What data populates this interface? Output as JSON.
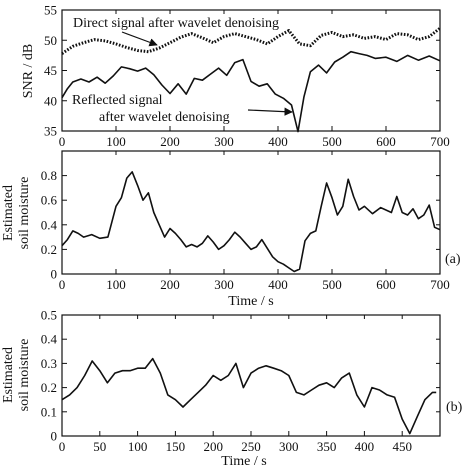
{
  "chart_data": [
    {
      "type": "line",
      "xlabel": "",
      "ylabel": "SNR / dB",
      "xlim": [
        0,
        700
      ],
      "ylim": [
        35,
        55
      ],
      "xticks": [
        0,
        100,
        200,
        300,
        400,
        500,
        600,
        700
      ],
      "yticks": [
        35,
        40,
        45,
        50,
        55
      ],
      "grid": false,
      "annotations": [
        {
          "text": "Direct signal after wavelet denoising",
          "target_series": 0
        },
        {
          "text": "Reflected signal after wavelet denoising",
          "lines": [
            "Reflected signal",
            "after wavelet denoising"
          ],
          "target_series": 1
        }
      ],
      "series": [
        {
          "style": "dotted",
          "x": [
            0,
            20,
            40,
            60,
            80,
            100,
            120,
            140,
            160,
            180,
            200,
            220,
            240,
            260,
            280,
            300,
            320,
            340,
            360,
            380,
            400,
            420,
            440,
            460,
            480,
            500,
            520,
            540,
            560,
            580,
            600,
            620,
            640,
            660,
            680,
            700
          ],
          "y": [
            47.8,
            49.0,
            49.6,
            50.1,
            49.9,
            49.4,
            48.8,
            48.3,
            48.1,
            48.7,
            49.6,
            50.5,
            51.1,
            50.4,
            49.6,
            50.6,
            51.1,
            50.6,
            50.1,
            49.4,
            50.6,
            51.6,
            49.4,
            49.1,
            50.8,
            51.3,
            50.6,
            50.9,
            50.3,
            50.6,
            50.1,
            51.1,
            50.9,
            50.1,
            50.6,
            52.0
          ]
        },
        {
          "style": "solid",
          "x": [
            0,
            10,
            20,
            35,
            50,
            65,
            80,
            95,
            110,
            125,
            140,
            155,
            170,
            185,
            200,
            215,
            230,
            245,
            260,
            275,
            290,
            305,
            320,
            335,
            350,
            365,
            380,
            395,
            410,
            425,
            437,
            448,
            460,
            475,
            490,
            505,
            520,
            535,
            550,
            565,
            580,
            600,
            620,
            640,
            660,
            680,
            700
          ],
          "y": [
            40.5,
            42.0,
            43.1,
            43.6,
            43.1,
            43.9,
            42.9,
            44.1,
            45.6,
            45.3,
            44.9,
            45.4,
            44.3,
            42.6,
            41.2,
            42.8,
            41.1,
            43.7,
            43.4,
            44.4,
            45.4,
            44.2,
            46.3,
            46.8,
            43.2,
            42.4,
            42.8,
            41.1,
            40.4,
            39.3,
            34.9,
            40.6,
            44.8,
            45.9,
            44.6,
            46.4,
            47.2,
            48.1,
            47.8,
            47.5,
            47.0,
            47.2,
            46.5,
            47.5,
            46.7,
            47.4,
            46.6
          ]
        }
      ]
    },
    {
      "type": "line",
      "panel_label": "(a)",
      "xlabel": "Time / s",
      "ylabel": "Estimated soil moisture",
      "ylabel_lines": [
        "Estimated",
        "soil moisture"
      ],
      "xlim": [
        0,
        700
      ],
      "ylim": [
        0,
        1.0
      ],
      "xticks": [
        0,
        100,
        200,
        300,
        400,
        500,
        600,
        700
      ],
      "yticks": [
        0,
        0.2,
        0.4,
        0.6,
        0.8
      ],
      "grid": false,
      "series": [
        {
          "style": "solid",
          "x": [
            0,
            10,
            20,
            30,
            40,
            55,
            70,
            85,
            100,
            110,
            120,
            130,
            140,
            150,
            160,
            170,
            180,
            190,
            200,
            210,
            220,
            230,
            240,
            250,
            260,
            270,
            280,
            290,
            300,
            310,
            320,
            330,
            340,
            350,
            360,
            370,
            380,
            390,
            400,
            410,
            420,
            430,
            440,
            450,
            460,
            470,
            480,
            490,
            500,
            510,
            520,
            530,
            540,
            550,
            560,
            575,
            590,
            610,
            620,
            630,
            640,
            650,
            660,
            670,
            680,
            690,
            700
          ],
          "y": [
            0.23,
            0.28,
            0.35,
            0.33,
            0.3,
            0.32,
            0.29,
            0.3,
            0.55,
            0.62,
            0.78,
            0.83,
            0.72,
            0.6,
            0.66,
            0.5,
            0.4,
            0.3,
            0.37,
            0.33,
            0.28,
            0.22,
            0.24,
            0.22,
            0.25,
            0.31,
            0.26,
            0.2,
            0.23,
            0.28,
            0.34,
            0.3,
            0.25,
            0.2,
            0.22,
            0.28,
            0.21,
            0.14,
            0.1,
            0.08,
            0.05,
            0.02,
            0.04,
            0.27,
            0.33,
            0.35,
            0.55,
            0.74,
            0.62,
            0.48,
            0.55,
            0.77,
            0.63,
            0.52,
            0.55,
            0.49,
            0.54,
            0.5,
            0.63,
            0.5,
            0.48,
            0.53,
            0.45,
            0.48,
            0.56,
            0.38,
            0.36
          ]
        }
      ]
    },
    {
      "type": "line",
      "panel_label": "(b)",
      "xlabel": "Time / s",
      "ylabel": "Estimated soil moisture",
      "ylabel_lines": [
        "Estimated",
        "soil moisture"
      ],
      "xlim": [
        0,
        500
      ],
      "ylim": [
        0,
        0.5
      ],
      "xticks": [
        0,
        50,
        100,
        150,
        200,
        250,
        300,
        350,
        400,
        450
      ],
      "yticks": [
        0,
        0.1,
        0.2,
        0.3,
        0.4,
        0.5
      ],
      "grid": false,
      "series": [
        {
          "style": "solid",
          "x": [
            0,
            10,
            20,
            30,
            40,
            50,
            60,
            70,
            80,
            90,
            100,
            110,
            120,
            130,
            140,
            150,
            160,
            170,
            180,
            190,
            200,
            210,
            220,
            230,
            240,
            250,
            260,
            270,
            280,
            290,
            300,
            310,
            320,
            330,
            340,
            350,
            360,
            370,
            380,
            390,
            400,
            410,
            420,
            430,
            440,
            450,
            460,
            470,
            480,
            490,
            495
          ],
          "y": [
            0.15,
            0.17,
            0.2,
            0.25,
            0.31,
            0.27,
            0.22,
            0.26,
            0.27,
            0.27,
            0.28,
            0.28,
            0.32,
            0.26,
            0.17,
            0.15,
            0.12,
            0.15,
            0.18,
            0.21,
            0.25,
            0.23,
            0.25,
            0.3,
            0.2,
            0.26,
            0.28,
            0.29,
            0.28,
            0.27,
            0.25,
            0.18,
            0.17,
            0.19,
            0.21,
            0.22,
            0.2,
            0.24,
            0.26,
            0.17,
            0.12,
            0.2,
            0.19,
            0.17,
            0.16,
            0.07,
            0.01,
            0.08,
            0.15,
            0.18,
            0.18
          ]
        }
      ]
    }
  ]
}
